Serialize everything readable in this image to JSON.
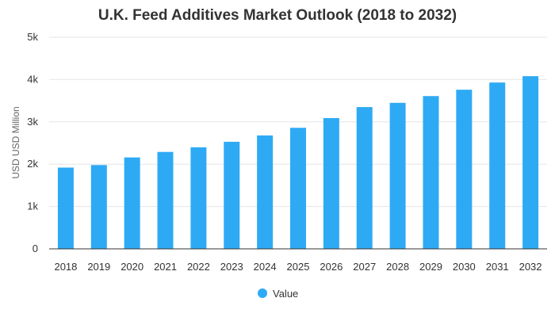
{
  "chart_data": {
    "type": "bar",
    "title": "U.K. Feed Additives Market Outlook (2018 to 2032)",
    "xlabel": "",
    "ylabel": "USD USD Million",
    "categories": [
      "2018",
      "2019",
      "2020",
      "2021",
      "2022",
      "2023",
      "2024",
      "2025",
      "2026",
      "2027",
      "2028",
      "2029",
      "2030",
      "2031",
      "2032"
    ],
    "series": [
      {
        "name": "Value",
        "color": "#2eaaf5",
        "values": [
          1920,
          1980,
          2160,
          2290,
          2400,
          2530,
          2680,
          2860,
          3090,
          3350,
          3450,
          3610,
          3760,
          3930,
          4080
        ]
      }
    ],
    "ylim": [
      0,
      5000
    ],
    "yticks": [
      {
        "value": 0,
        "label": "0"
      },
      {
        "value": 1000,
        "label": "1k"
      },
      {
        "value": 2000,
        "label": "2k"
      },
      {
        "value": 3000,
        "label": "3k"
      },
      {
        "value": 4000,
        "label": "4k"
      },
      {
        "value": 5000,
        "label": "5k"
      }
    ],
    "grid": true,
    "legend_position": "bottom-center"
  }
}
